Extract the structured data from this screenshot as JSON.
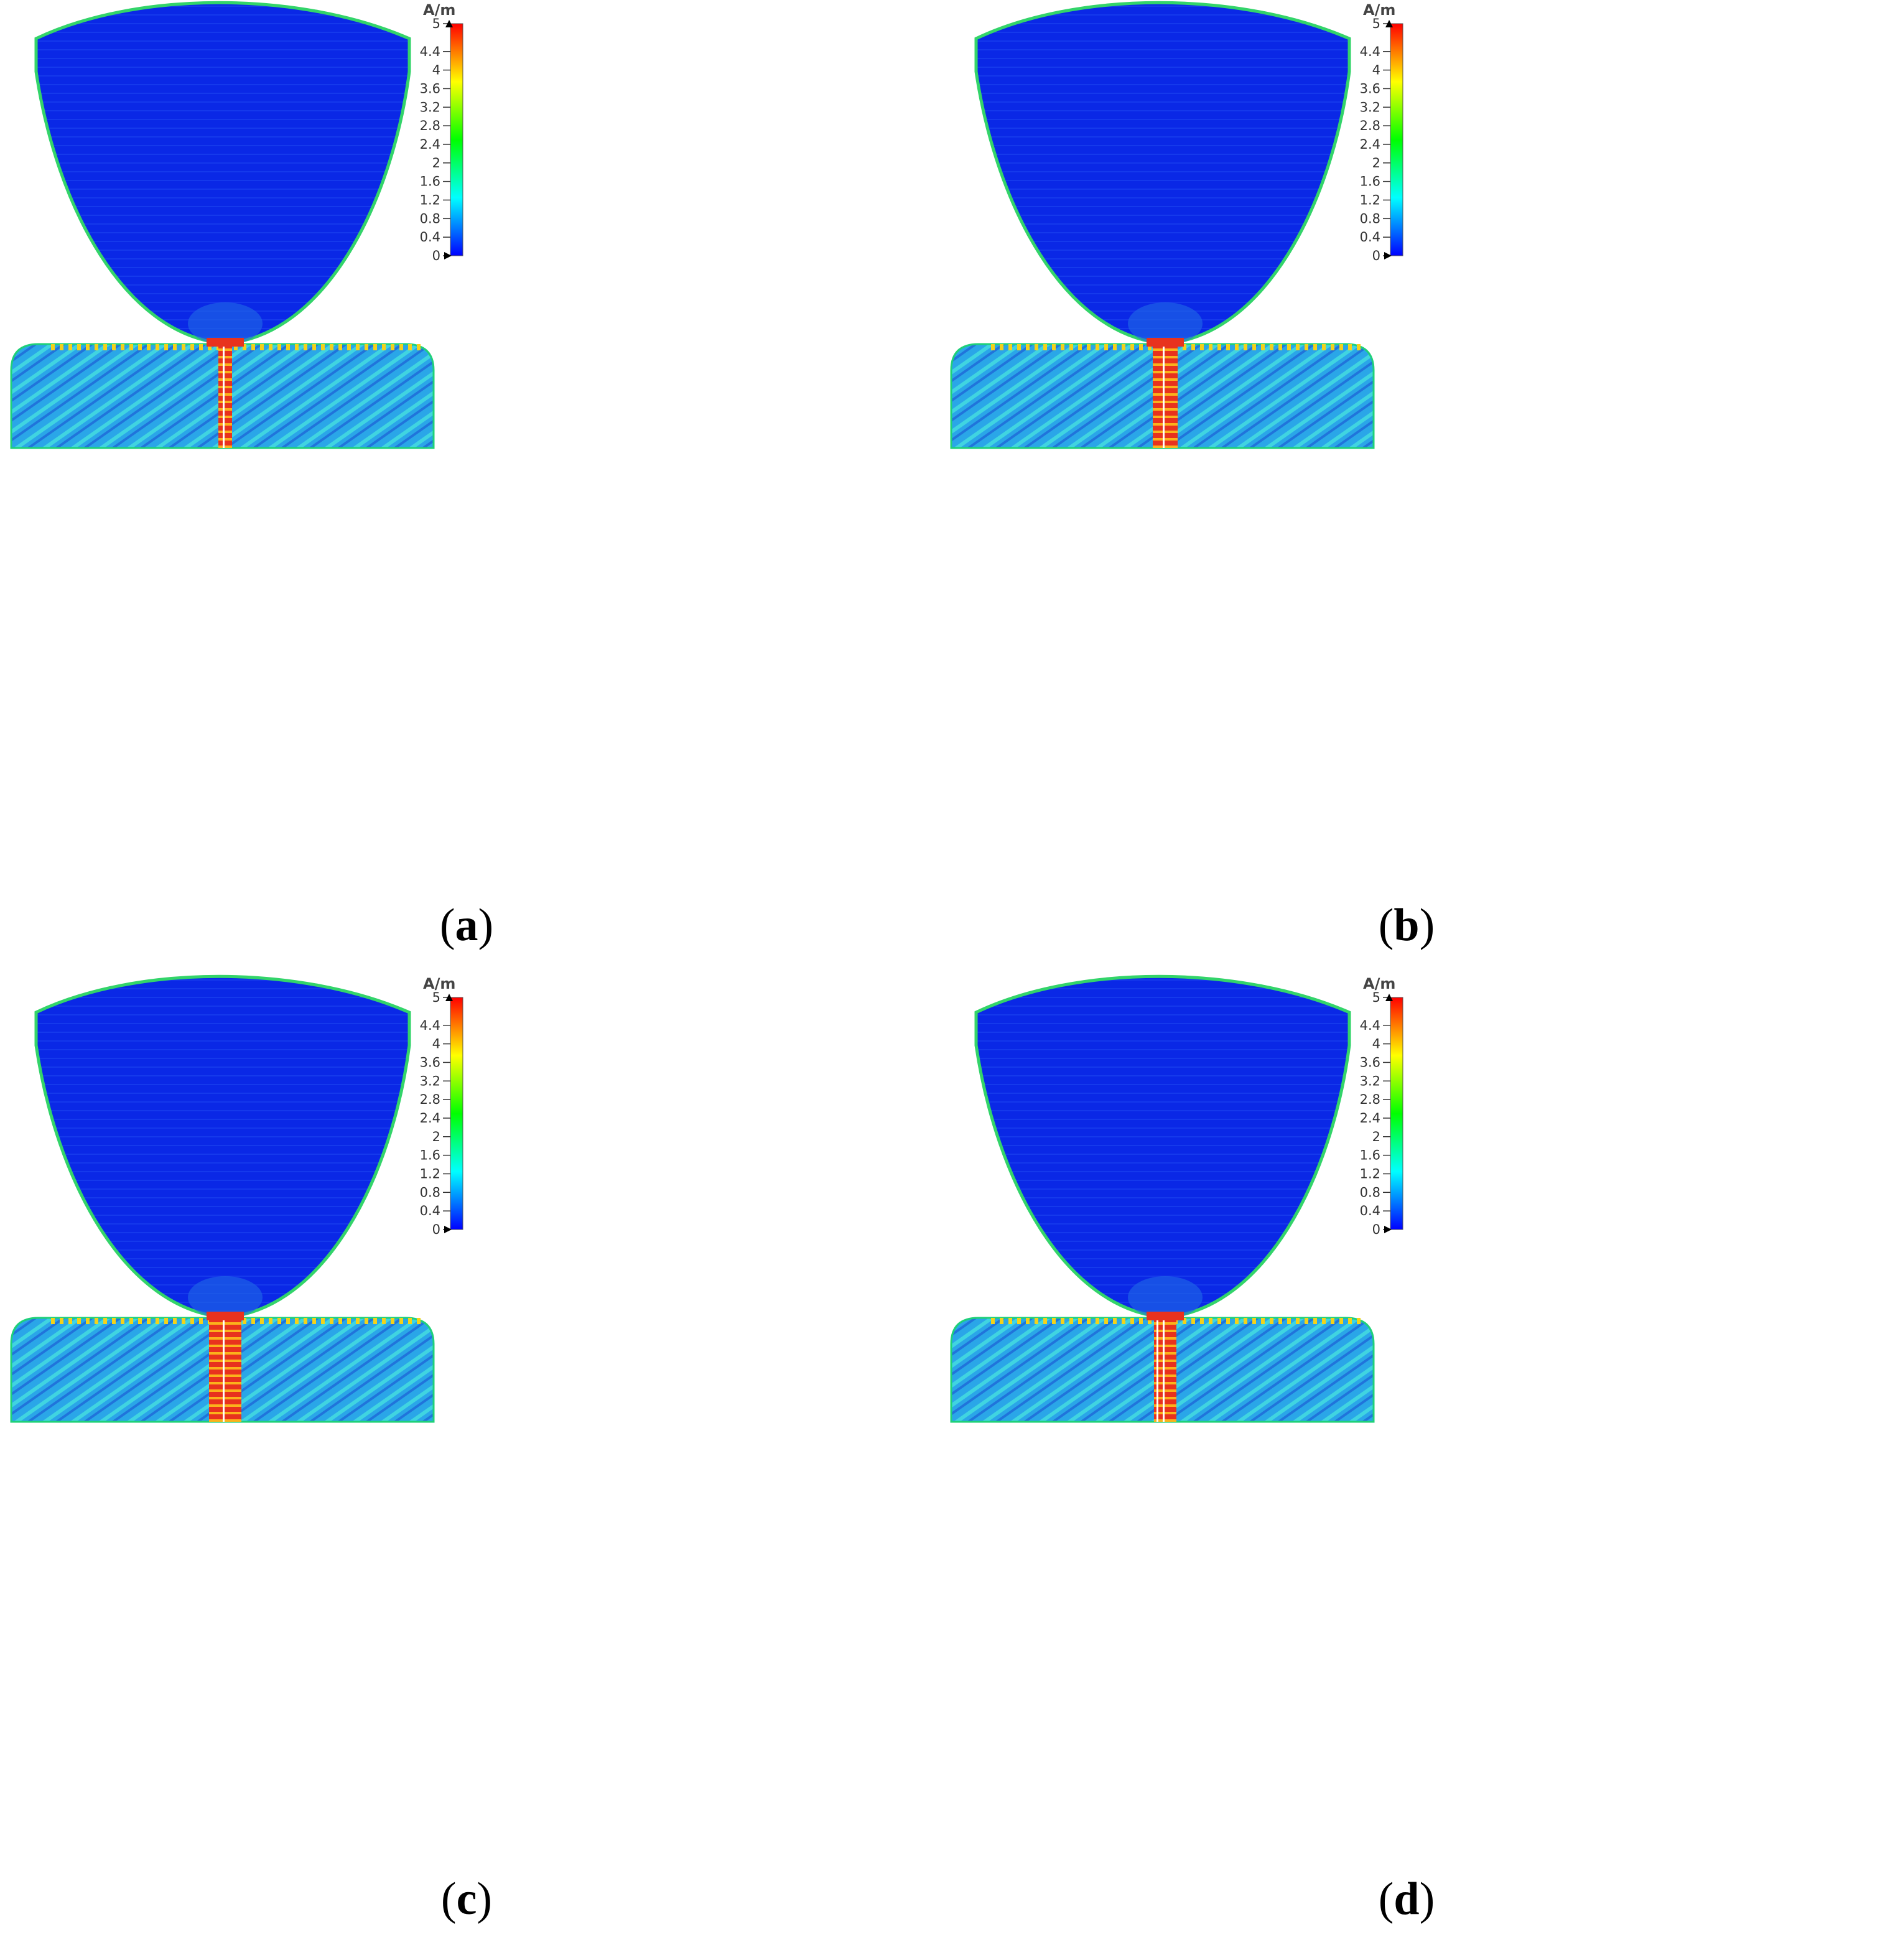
{
  "panels": [
    {
      "id": "a",
      "label": "a",
      "feed_width": "narrow"
    },
    {
      "id": "b",
      "label": "b",
      "feed_width": "medium"
    },
    {
      "id": "c",
      "label": "c",
      "feed_width": "wide"
    },
    {
      "id": "d",
      "label": "d",
      "feed_width": "narrow-double"
    }
  ],
  "colorbar": {
    "unit": "A/m",
    "ticks": [
      "5",
      "4.4",
      "4",
      "3.6",
      "3.2",
      "2.8",
      "2.4",
      "2",
      "1.6",
      "1.2",
      "0.8",
      "0.4",
      "0"
    ],
    "tick_values": [
      5,
      4.4,
      4,
      3.6,
      3.2,
      2.8,
      2.4,
      2,
      1.6,
      1.2,
      0.8,
      0.4,
      0
    ],
    "min": 0,
    "max": 5,
    "colormap": [
      "#0000ff",
      "#0080ff",
      "#00ffff",
      "#00ff80",
      "#00ff00",
      "#80ff00",
      "#ffff00",
      "#ff8000",
      "#ff0000"
    ]
  },
  "field_colors": {
    "reflector_bg": "#0a28e6",
    "substrate_bg": "#2aa6e8",
    "hot": "#e8321e",
    "edge": "#33d46a"
  }
}
